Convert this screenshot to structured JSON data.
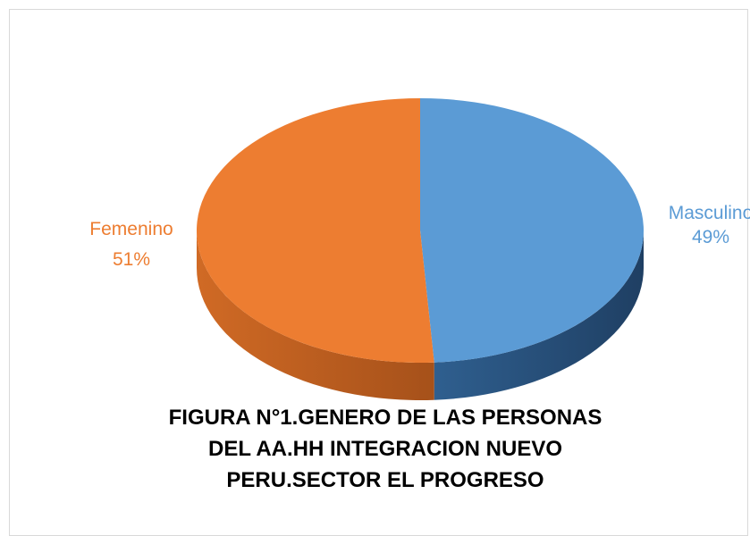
{
  "chart_data": {
    "type": "pie",
    "title": "FIGURA N°1.GENERO DE LAS PERSONAS DEL AA.HH INTEGRACION NUEVO PERU.SECTOR EL PROGRESO",
    "categories": [
      "Masculino",
      "Femenino"
    ],
    "values": [
      49,
      51
    ],
    "value_labels": [
      "49%",
      "51%"
    ],
    "colors": [
      "#5b9bd5",
      "#ed7d31"
    ]
  }
}
